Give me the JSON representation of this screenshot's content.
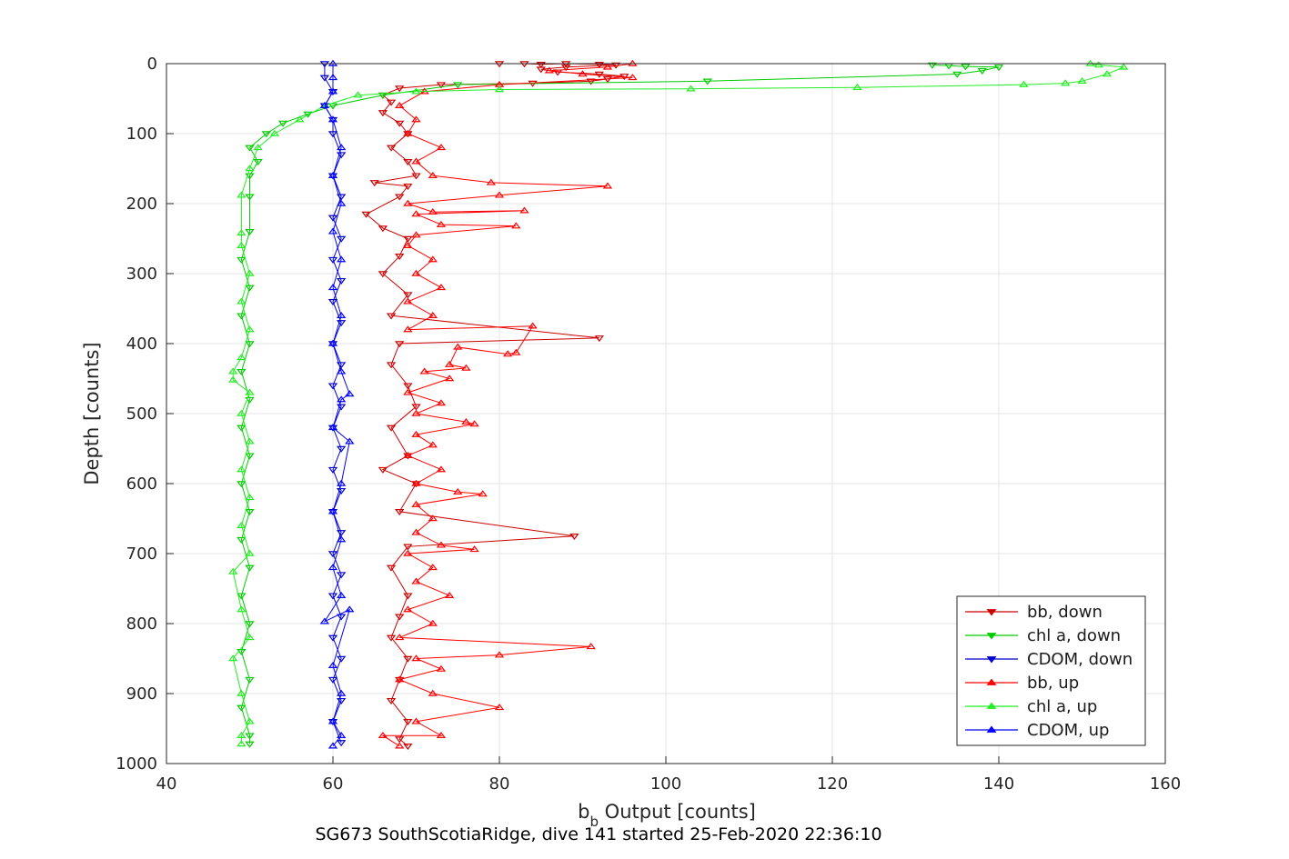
{
  "chart_data": {
    "type": "scatter",
    "xlabel_main": "b",
    "xlabel_sub": "b",
    "xlabel_rest": " Output [counts]",
    "ylabel": "Depth [counts]",
    "footer": "SG673 SouthScotiaRidge, dive 141 started 25-Feb-2020 22:36:10",
    "xlim": [
      40,
      160
    ],
    "ylim": [
      0,
      1000
    ],
    "y_reversed": true,
    "grid": true,
    "legend_position": "bottom-right",
    "x_ticks": [
      "40",
      "60",
      "80",
      "100",
      "120",
      "140",
      "160"
    ],
    "y_ticks": [
      "0",
      "100",
      "200",
      "300",
      "400",
      "500",
      "600",
      "700",
      "800",
      "900",
      "1000"
    ],
    "series": [
      {
        "name": "bb, down",
        "color": "#cc0000",
        "marker": "triangle-down",
        "connected": true,
        "points": [
          [
            80,
            0
          ],
          [
            83,
            0
          ],
          [
            85,
            1
          ],
          [
            88,
            0
          ],
          [
            92,
            1
          ],
          [
            94,
            2
          ],
          [
            88,
            5
          ],
          [
            85,
            8
          ],
          [
            87,
            12
          ],
          [
            92,
            15
          ],
          [
            95,
            18
          ],
          [
            93,
            22
          ],
          [
            91,
            25
          ],
          [
            84,
            28
          ],
          [
            73,
            30
          ],
          [
            68,
            35
          ],
          [
            66,
            45
          ],
          [
            67,
            55
          ],
          [
            66,
            70
          ],
          [
            68,
            85
          ],
          [
            69,
            100
          ],
          [
            67,
            120
          ],
          [
            69,
            140
          ],
          [
            70,
            160
          ],
          [
            65,
            170
          ],
          [
            69,
            175
          ],
          [
            68,
            190
          ],
          [
            64,
            215
          ],
          [
            66,
            235
          ],
          [
            69,
            250
          ],
          [
            68,
            275
          ],
          [
            66,
            300
          ],
          [
            69,
            330
          ],
          [
            67,
            360
          ],
          [
            92,
            392
          ],
          [
            68,
            400
          ],
          [
            67,
            430
          ],
          [
            69,
            460
          ],
          [
            70,
            490
          ],
          [
            67,
            520
          ],
          [
            69,
            560
          ],
          [
            66,
            580
          ],
          [
            70,
            600
          ],
          [
            68,
            640
          ],
          [
            89,
            675
          ],
          [
            69,
            690
          ],
          [
            67,
            720
          ],
          [
            69,
            760
          ],
          [
            68,
            790
          ],
          [
            67,
            820
          ],
          [
            69,
            850
          ],
          [
            68,
            880
          ],
          [
            67,
            910
          ],
          [
            69,
            940
          ],
          [
            68,
            965
          ],
          [
            69,
            975
          ]
        ]
      },
      {
        "name": "chl a, down",
        "color": "#00cc00",
        "marker": "triangle-down",
        "connected": true,
        "points": [
          [
            132,
            2
          ],
          [
            134,
            3
          ],
          [
            136,
            4
          ],
          [
            140,
            5
          ],
          [
            138,
            10
          ],
          [
            135,
            15
          ],
          [
            105,
            25
          ],
          [
            75,
            30
          ],
          [
            66,
            45
          ],
          [
            60,
            60
          ],
          [
            57,
            72
          ],
          [
            54,
            85
          ],
          [
            52,
            100
          ],
          [
            50,
            120
          ],
          [
            51,
            140
          ],
          [
            50,
            160
          ],
          [
            50,
            190
          ],
          [
            50,
            240
          ],
          [
            49,
            280
          ],
          [
            50,
            320
          ],
          [
            49,
            360
          ],
          [
            50,
            400
          ],
          [
            49,
            440
          ],
          [
            50,
            480
          ],
          [
            49,
            520
          ],
          [
            50,
            560
          ],
          [
            49,
            600
          ],
          [
            50,
            640
          ],
          [
            49,
            680
          ],
          [
            50,
            720
          ],
          [
            49,
            760
          ],
          [
            50,
            800
          ],
          [
            49,
            840
          ],
          [
            50,
            880
          ],
          [
            49,
            920
          ],
          [
            50,
            960
          ],
          [
            50,
            972
          ]
        ]
      },
      {
        "name": "CDOM, down",
        "color": "#0000cc",
        "marker": "triangle-down",
        "connected": true,
        "points": [
          [
            59,
            0
          ],
          [
            59,
            20
          ],
          [
            60,
            40
          ],
          [
            59,
            60
          ],
          [
            60,
            80
          ],
          [
            60,
            100
          ],
          [
            61,
            130
          ],
          [
            60,
            160
          ],
          [
            61,
            190
          ],
          [
            60,
            220
          ],
          [
            61,
            250
          ],
          [
            60,
            280
          ],
          [
            61,
            310
          ],
          [
            60,
            340
          ],
          [
            61,
            370
          ],
          [
            60,
            400
          ],
          [
            61,
            430
          ],
          [
            60,
            460
          ],
          [
            61,
            490
          ],
          [
            60,
            520
          ],
          [
            61,
            550
          ],
          [
            60,
            580
          ],
          [
            61,
            610
          ],
          [
            60,
            640
          ],
          [
            61,
            670
          ],
          [
            60,
            700
          ],
          [
            61,
            730
          ],
          [
            60,
            760
          ],
          [
            61,
            790
          ],
          [
            60,
            820
          ],
          [
            61,
            850
          ],
          [
            60,
            880
          ],
          [
            61,
            910
          ],
          [
            60,
            940
          ],
          [
            61,
            970
          ]
        ]
      },
      {
        "name": "bb, up",
        "color": "#ff0000",
        "marker": "triangle-up",
        "connected": true,
        "points": [
          [
            68,
            975
          ],
          [
            66,
            960
          ],
          [
            73,
            960
          ],
          [
            70,
            940
          ],
          [
            80,
            920
          ],
          [
            72,
            900
          ],
          [
            68,
            880
          ],
          [
            73,
            865
          ],
          [
            70,
            850
          ],
          [
            80,
            845
          ],
          [
            91,
            833
          ],
          [
            68,
            820
          ],
          [
            72,
            800
          ],
          [
            69,
            780
          ],
          [
            74,
            760
          ],
          [
            70,
            740
          ],
          [
            72,
            720
          ],
          [
            69,
            700
          ],
          [
            77,
            694
          ],
          [
            73,
            688
          ],
          [
            70,
            670
          ],
          [
            72,
            650
          ],
          [
            70,
            630
          ],
          [
            78,
            615
          ],
          [
            75,
            612
          ],
          [
            70,
            600
          ],
          [
            73,
            580
          ],
          [
            69,
            560
          ],
          [
            72,
            545
          ],
          [
            70,
            530
          ],
          [
            77,
            515
          ],
          [
            76,
            512
          ],
          [
            70,
            500
          ],
          [
            73,
            485
          ],
          [
            69,
            470
          ],
          [
            74,
            450
          ],
          [
            71,
            440
          ],
          [
            76,
            435
          ],
          [
            74,
            430
          ],
          [
            75,
            405
          ],
          [
            81,
            415
          ],
          [
            82,
            413
          ],
          [
            84,
            375
          ],
          [
            69,
            380
          ],
          [
            72,
            360
          ],
          [
            69,
            340
          ],
          [
            73,
            320
          ],
          [
            70,
            300
          ],
          [
            72,
            280
          ],
          [
            69,
            260
          ],
          [
            70,
            245
          ],
          [
            82,
            232
          ],
          [
            73,
            230
          ],
          [
            70,
            215
          ],
          [
            83,
            210
          ],
          [
            72,
            212
          ],
          [
            69,
            200
          ],
          [
            80,
            188
          ],
          [
            93,
            175
          ],
          [
            79,
            170
          ],
          [
            72,
            160
          ],
          [
            70,
            140
          ],
          [
            73,
            120
          ],
          [
            69,
            100
          ],
          [
            70,
            80
          ],
          [
            68,
            60
          ],
          [
            71,
            40
          ],
          [
            80,
            30
          ],
          [
            96,
            20
          ],
          [
            90,
            15
          ],
          [
            86,
            10
          ],
          [
            93,
            5
          ],
          [
            96,
            0
          ]
        ]
      },
      {
        "name": "chl a, up",
        "color": "#22ee22",
        "marker": "triangle-up",
        "connected": true,
        "points": [
          [
            49,
            972
          ],
          [
            49,
            960
          ],
          [
            50,
            940
          ],
          [
            49,
            900
          ],
          [
            48,
            850
          ],
          [
            50,
            820
          ],
          [
            49,
            780
          ],
          [
            48,
            726
          ],
          [
            50,
            700
          ],
          [
            49,
            660
          ],
          [
            50,
            620
          ],
          [
            49,
            580
          ],
          [
            50,
            540
          ],
          [
            49,
            500
          ],
          [
            50,
            470
          ],
          [
            48,
            452
          ],
          [
            48,
            440
          ],
          [
            49,
            420
          ],
          [
            50,
            380
          ],
          [
            49,
            340
          ],
          [
            50,
            300
          ],
          [
            49,
            260
          ],
          [
            49,
            242
          ],
          [
            49,
            188
          ],
          [
            50,
            150
          ],
          [
            51,
            120
          ],
          [
            53,
            100
          ],
          [
            56,
            80
          ],
          [
            59,
            60
          ],
          [
            63,
            45
          ],
          [
            70,
            40
          ],
          [
            80,
            37
          ],
          [
            103,
            36
          ],
          [
            123,
            34
          ],
          [
            143,
            30
          ],
          [
            148,
            28
          ],
          [
            150,
            25
          ],
          [
            153,
            15
          ],
          [
            155,
            5
          ],
          [
            152,
            2
          ],
          [
            151,
            0
          ]
        ]
      },
      {
        "name": "CDOM, up",
        "color": "#0000ff",
        "marker": "triangle-up",
        "connected": true,
        "points": [
          [
            60,
            975
          ],
          [
            61,
            960
          ],
          [
            60,
            940
          ],
          [
            61,
            900
          ],
          [
            60,
            860
          ],
          [
            62,
            780
          ],
          [
            59,
            797
          ],
          [
            61,
            760
          ],
          [
            60,
            720
          ],
          [
            61,
            680
          ],
          [
            60,
            640
          ],
          [
            61,
            600
          ],
          [
            62,
            540
          ],
          [
            60,
            520
          ],
          [
            61,
            480
          ],
          [
            62,
            472
          ],
          [
            61,
            440
          ],
          [
            60,
            400
          ],
          [
            61,
            360
          ],
          [
            60,
            320
          ],
          [
            61,
            280
          ],
          [
            60,
            240
          ],
          [
            61,
            200
          ],
          [
            60,
            160
          ],
          [
            61,
            120
          ],
          [
            60,
            80
          ],
          [
            59,
            60
          ],
          [
            60,
            40
          ],
          [
            60,
            20
          ],
          [
            60,
            0
          ]
        ]
      }
    ]
  }
}
